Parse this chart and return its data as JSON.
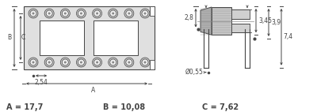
{
  "bg_color": "#ffffff",
  "fig_width": 4.0,
  "fig_height": 1.42,
  "dpi": 100,
  "label_A": "A = 17,7",
  "label_B": "B = 10,08",
  "label_C": "C = 7,62",
  "label_fontsize": 7.0,
  "dim_fontsize": 5.5,
  "pin_label_2_8": "2,8",
  "pin_label_3_45": "3,45",
  "pin_label_3_9": "3,9",
  "pin_label_7_4": "7,4",
  "pin_label_dia": "Ø0,55",
  "pin_label_2_54": "2,54",
  "label_A_dim": "A",
  "label_B_dim": "B",
  "label_C_dim": "C",
  "body_fill": "#e0e0e0",
  "hole_fill": "#ffffff",
  "pin_fill_outer": "#c8c8c8",
  "pin_fill_inner": "#f0f0f0",
  "pin_fill_dot": "#888888",
  "line_color": "#444444",
  "arrow_color": "#444444",
  "connector_fill": "#c0c0c0",
  "connector_fill2": "#d8d8d8",
  "n_pins": 8
}
